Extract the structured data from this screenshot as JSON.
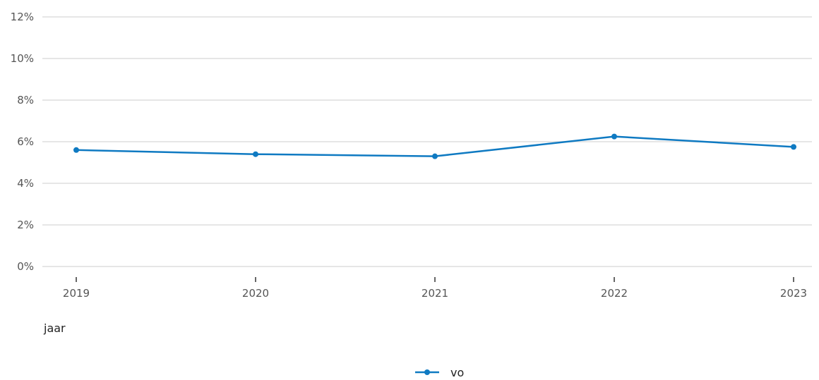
{
  "chart_data": {
    "type": "line",
    "title": "",
    "xlabel": "jaar",
    "ylabel": "",
    "categories": [
      "2019",
      "2020",
      "2021",
      "2022",
      "2023"
    ],
    "series": [
      {
        "name": "vo",
        "color": "#0F7AC2",
        "values": [
          5.6,
          5.4,
          5.3,
          6.25,
          5.75
        ]
      }
    ],
    "ylim": [
      0,
      12
    ],
    "yticks": [
      0,
      2,
      4,
      6,
      8,
      10,
      12
    ],
    "ytick_labels": [
      "0%",
      "2%",
      "4%",
      "6%",
      "8%",
      "10%",
      "12%"
    ],
    "grid": true,
    "legend_position": "bottom"
  }
}
